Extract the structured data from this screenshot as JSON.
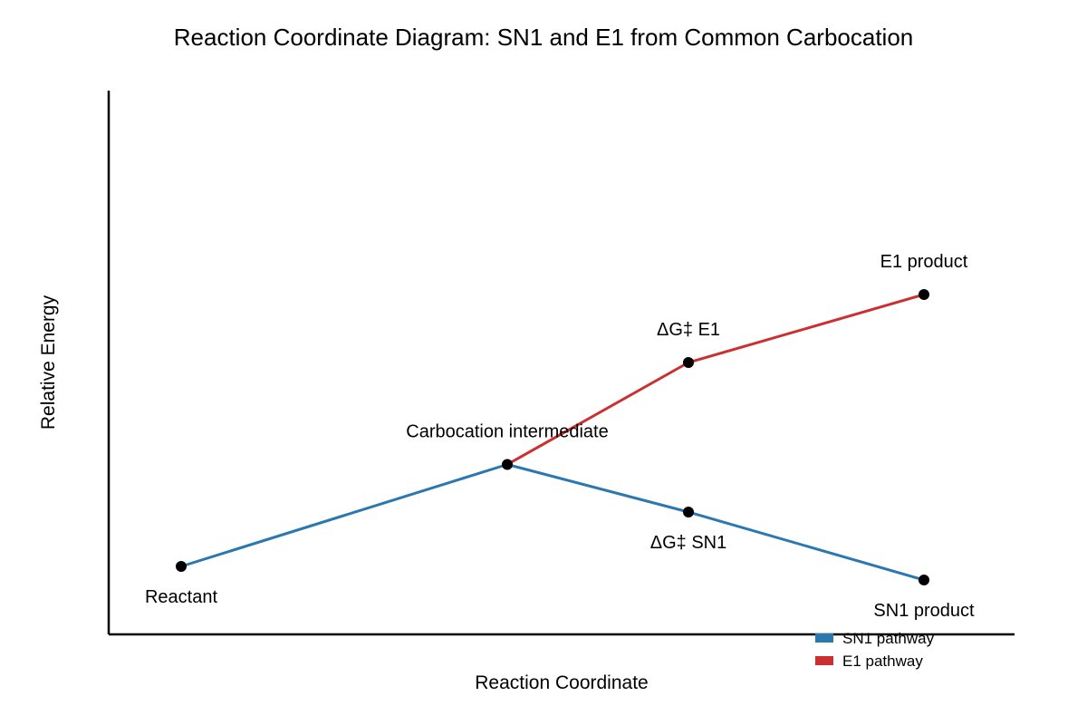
{
  "chart_data": {
    "type": "line",
    "title": "Reaction Coordinate Diagram: SN1 and E1 from Common Carbocation",
    "xlabel": "Reaction Coordinate",
    "ylabel": "Relative Energy",
    "xlim": [
      0,
      10
    ],
    "ylim": [
      0,
      6
    ],
    "grid": false,
    "legend": {
      "placement": "bottom-right",
      "entries": [
        "SN1 pathway",
        "E1 pathway"
      ]
    },
    "series": [
      {
        "name": "SN1 pathway",
        "color": "#2b78b0",
        "x": [
          0.8,
          4.4,
          6.4,
          9.0
        ],
        "y": [
          0.75,
          1.875,
          1.35,
          0.6
        ]
      },
      {
        "name": "E1 pathway",
        "color": "#cc2f2f",
        "x": [
          4.4,
          6.4,
          9.0
        ],
        "y": [
          1.875,
          3.0,
          3.75
        ]
      }
    ],
    "points": [
      {
        "label": "Reactant",
        "x": 0.8,
        "y": 0.75,
        "label_pos": "below"
      },
      {
        "label": "Carbocation intermediate",
        "x": 4.4,
        "y": 1.875,
        "label_pos": "above"
      },
      {
        "label": "ΔG‡ SN1",
        "x": 6.4,
        "y": 1.35,
        "label_pos": "below"
      },
      {
        "label": "SN1 product",
        "x": 9.0,
        "y": 0.6,
        "label_pos": "below"
      },
      {
        "label": "ΔG‡ E1",
        "x": 6.4,
        "y": 3.0,
        "label_pos": "above"
      },
      {
        "label": "E1 product",
        "x": 9.0,
        "y": 3.75,
        "label_pos": "above"
      }
    ]
  }
}
